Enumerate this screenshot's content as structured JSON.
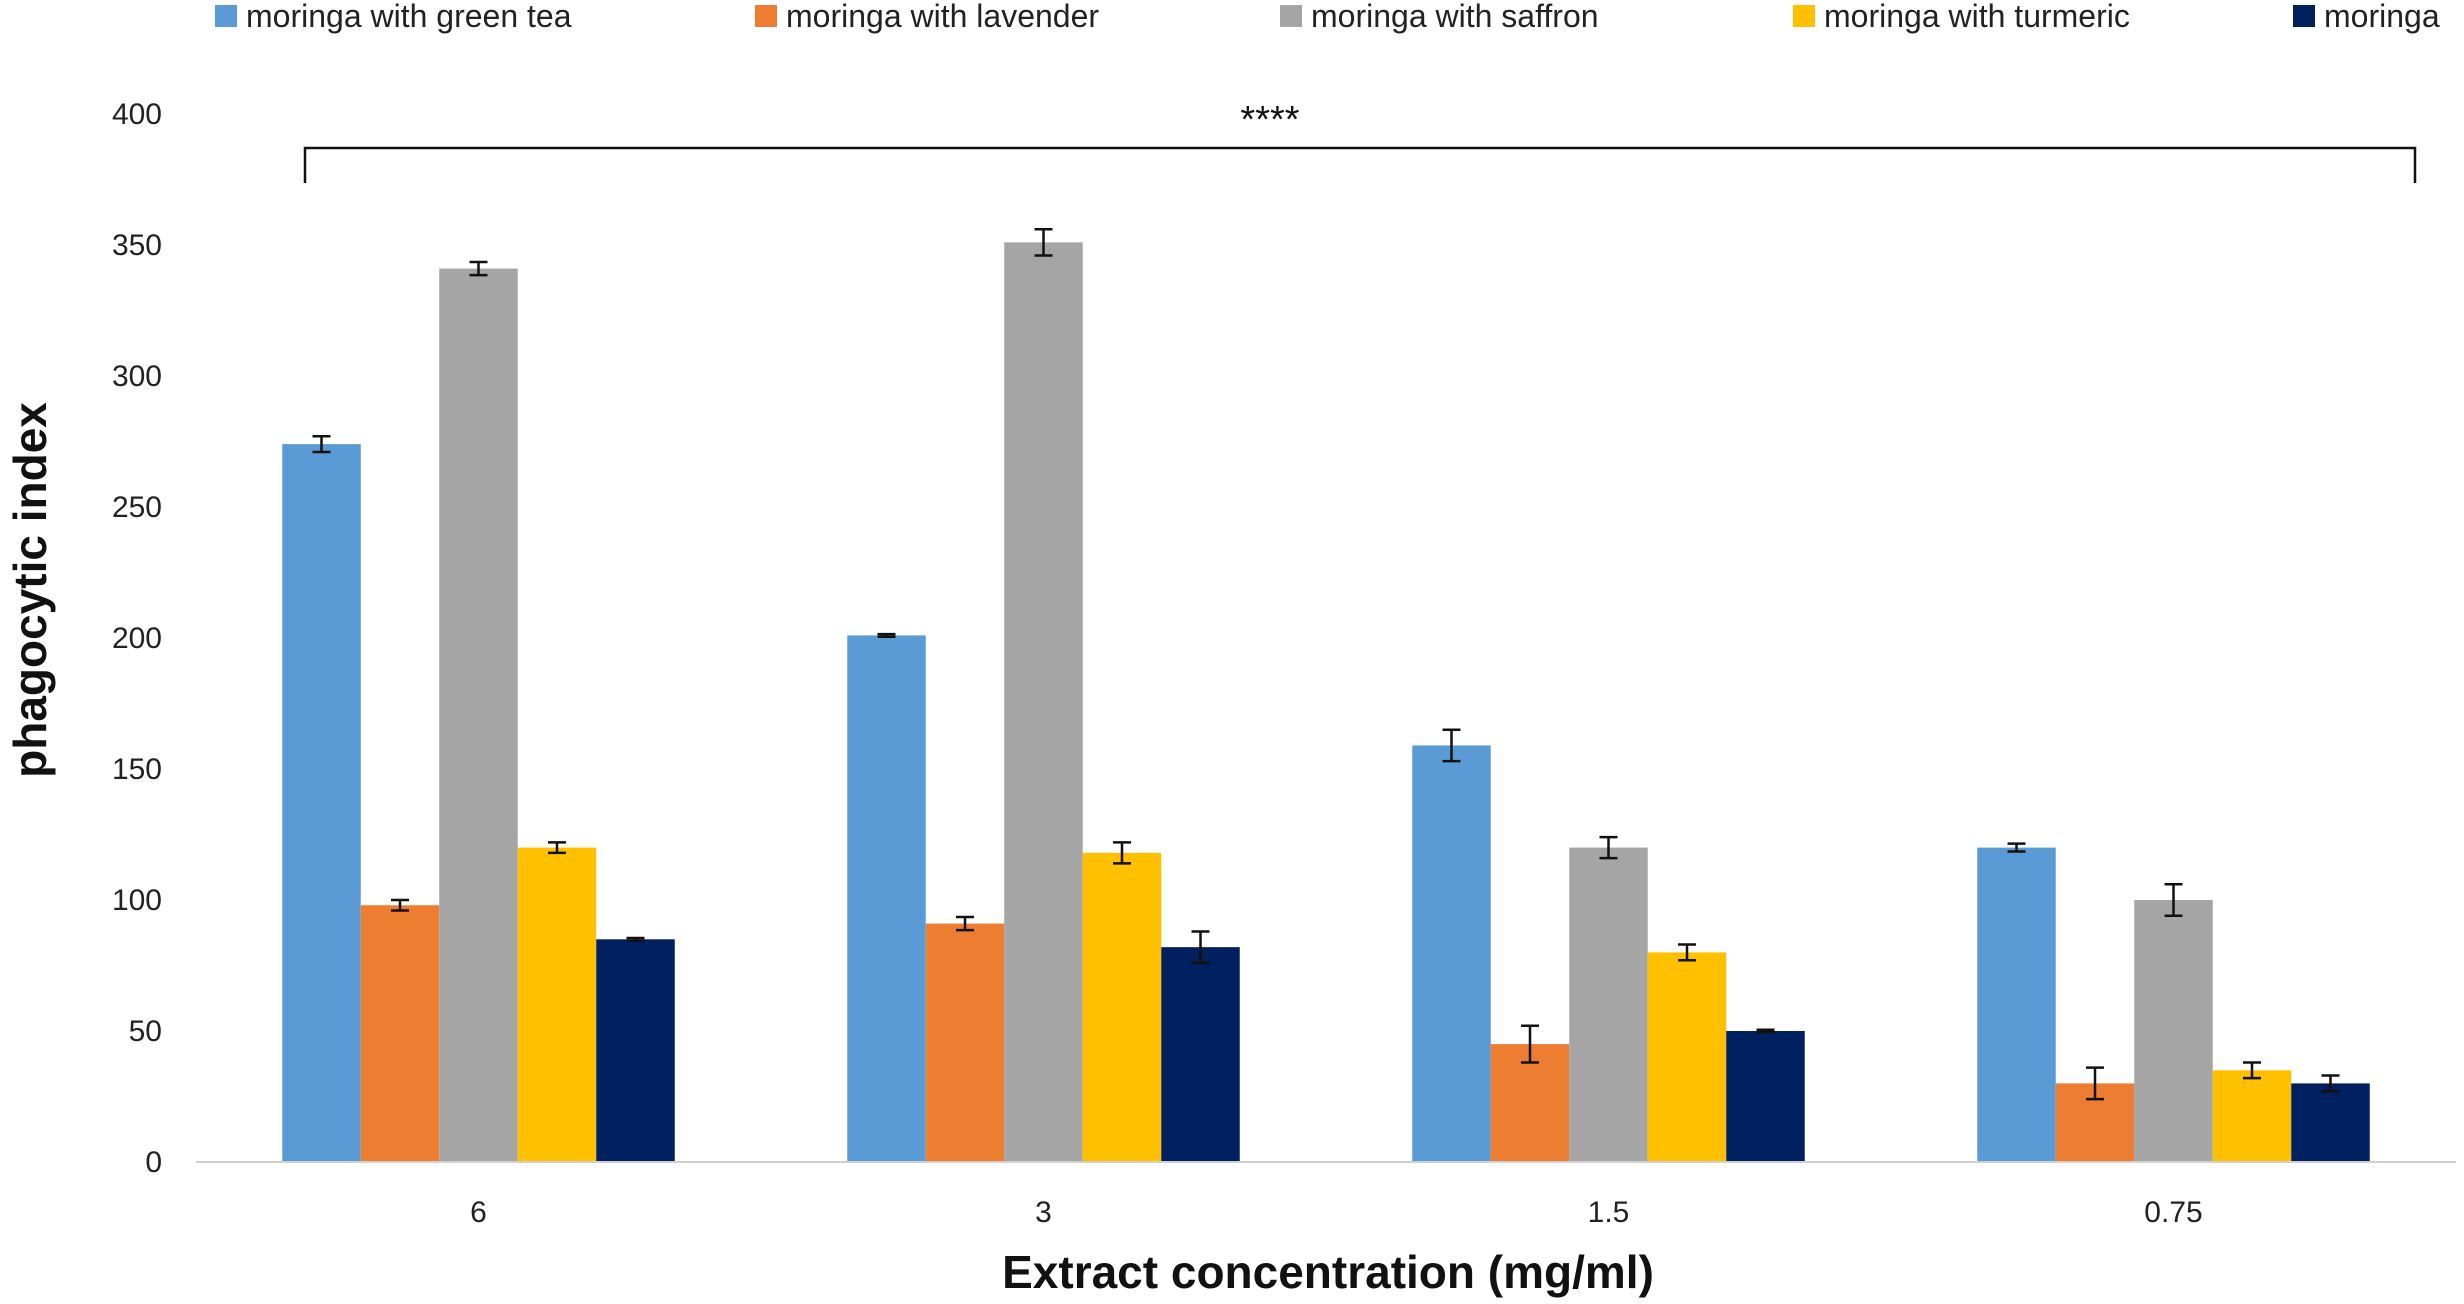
{
  "chart_data": {
    "type": "bar",
    "title": "",
    "xlabel": "Extract concentration (mg/ml)",
    "ylabel": "phagocytic index",
    "categories": [
      "6",
      "3",
      "1.5",
      "0.75"
    ],
    "ylim": [
      0,
      400
    ],
    "yticks": [
      0,
      50,
      100,
      150,
      200,
      250,
      300,
      350,
      400
    ],
    "yticks_labels": [
      "0",
      "50",
      "100",
      "150",
      "200",
      "250",
      "300",
      "350",
      "400"
    ],
    "grid": false,
    "legend_position": "top",
    "annotation": "****",
    "series": [
      {
        "name": "moringa with green tea",
        "color": "#5B9BD5",
        "values": [
          274,
          201,
          159,
          120
        ],
        "errors": [
          3,
          0.5,
          6,
          1.5
        ]
      },
      {
        "name": "moringa with lavender",
        "color": "#ED7D31",
        "values": [
          98,
          91,
          45,
          30
        ],
        "errors": [
          2,
          2.5,
          7,
          6
        ]
      },
      {
        "name": "moringa with saffron",
        "color": "#A5A5A5",
        "values": [
          341,
          351,
          120,
          100
        ],
        "errors": [
          2.5,
          5,
          4,
          6
        ]
      },
      {
        "name": "moringa with turmeric",
        "color": "#FFC000",
        "values": [
          120,
          118,
          80,
          35
        ],
        "errors": [
          2,
          4,
          3,
          3
        ]
      },
      {
        "name": "moringa",
        "color": "#002060",
        "values": [
          85,
          82,
          50,
          30
        ],
        "errors": [
          0.5,
          6,
          0.5,
          3
        ]
      }
    ]
  }
}
